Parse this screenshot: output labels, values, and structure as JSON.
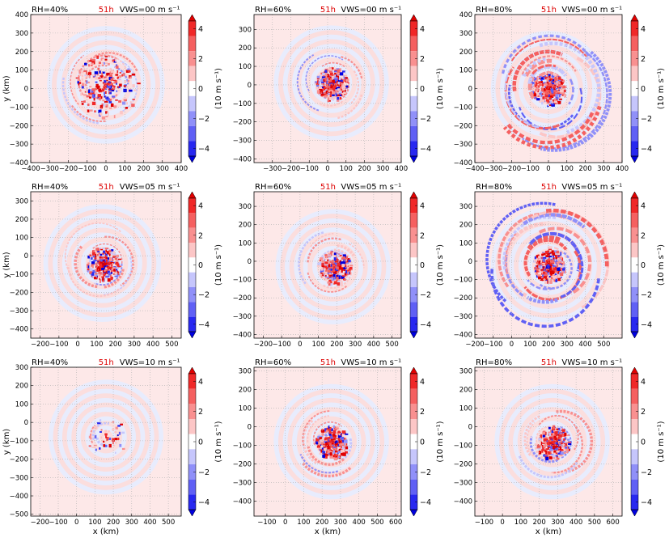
{
  "figure": {
    "colors": {
      "background_pink": "#fde8e8",
      "background_blue": "#e8ecfd",
      "red_strong": "#f01414",
      "red_mid": "#f56a6a",
      "red_light": "#f9a8a8",
      "blue_strong": "#1414f0",
      "blue_mid": "#6a6af5",
      "blue_light": "#a8a8f9",
      "grid": "#b0b0b0",
      "time_label": "#dd0000"
    },
    "colorbar": {
      "label": "(10 m s⁻¹)",
      "ticks": [
        "4",
        "2",
        "0",
        "−2",
        "−4"
      ],
      "levels": [
        4.5,
        3.5,
        2.5,
        1.5,
        0.5,
        -0.5,
        -1.5,
        -2.5,
        -3.5,
        -4.5
      ],
      "colors": [
        "#e00000",
        "#f02828",
        "#f56060",
        "#f99090",
        "#fcc6c6",
        "#ffffff",
        "#c6c6fc",
        "#9090f9",
        "#6060f5",
        "#2828f0",
        "#0000e0"
      ]
    }
  },
  "chart_data": [
    {
      "type": "heatmap",
      "title_left": "RH=40%",
      "title_time": "51h",
      "title_right": "VWS=00 m s⁻¹",
      "xlabel": "",
      "ylabel": "y (km)",
      "xlim": [
        -400,
        400
      ],
      "ylim": [
        -400,
        400
      ],
      "xticks": [
        "−400",
        "−300",
        "−200",
        "−100",
        "0",
        "100",
        "200",
        "300",
        "400"
      ],
      "xtick_values": [
        -400,
        -300,
        -200,
        -100,
        0,
        100,
        200,
        300,
        400
      ],
      "yticks": [
        "400",
        "300",
        "200",
        "100",
        "0",
        "−100",
        "−200",
        "−300",
        "−400"
      ],
      "ytick_values": [
        400,
        300,
        200,
        100,
        0,
        -100,
        -200,
        -300,
        -400
      ],
      "center": [
        0,
        20
      ],
      "pattern": "scattered",
      "strength": 0.9
    },
    {
      "type": "heatmap",
      "title_left": "RH=60%",
      "title_time": "51h",
      "title_right": "VWS=00 m s⁻¹",
      "xlabel": "",
      "ylabel": "",
      "xlim": [
        -400,
        400
      ],
      "ylim": [
        -420,
        380
      ],
      "xticks": [
        "−300",
        "−200",
        "−100",
        "0",
        "100",
        "200",
        "300",
        "400"
      ],
      "xtick_values": [
        -300,
        -200,
        -100,
        0,
        100,
        200,
        300,
        400
      ],
      "yticks": [
        "300",
        "200",
        "100",
        "0",
        "−100",
        "−200",
        "−300",
        "−400"
      ],
      "ytick_values": [
        300,
        200,
        100,
        0,
        -100,
        -200,
        -300,
        -400
      ],
      "center": [
        20,
        10
      ],
      "pattern": "spiral",
      "strength": 1.0
    },
    {
      "type": "heatmap",
      "title_left": "RH=80%",
      "title_time": "51h",
      "title_right": "VWS=00 m s⁻¹",
      "xlabel": "",
      "ylabel": "",
      "xlim": [
        -400,
        400
      ],
      "ylim": [
        -400,
        400
      ],
      "xticks": [
        "−400",
        "−300",
        "−200",
        "−100",
        "0",
        "100",
        "200",
        "300",
        "400"
      ],
      "xtick_values": [
        -400,
        -300,
        -200,
        -100,
        0,
        100,
        200,
        300,
        400
      ],
      "yticks": [
        "400",
        "300",
        "200",
        "100",
        "0",
        "−100",
        "−200",
        "−300",
        "−400"
      ],
      "ytick_values": [
        400,
        300,
        200,
        100,
        0,
        -100,
        -200,
        -300,
        -400
      ],
      "center": [
        0,
        0
      ],
      "pattern": "bands",
      "strength": 1.0
    },
    {
      "type": "heatmap",
      "title_left": "RH=40%",
      "title_time": "51h",
      "title_right": "VWS=05 m s⁻¹",
      "xlabel": "",
      "ylabel": "y (km)",
      "xlim": [
        -250,
        550
      ],
      "ylim": [
        -450,
        350
      ],
      "xticks": [
        "−200",
        "−100",
        "0",
        "100",
        "200",
        "300",
        "400",
        "500"
      ],
      "xtick_values": [
        -200,
        -100,
        0,
        100,
        200,
        300,
        400,
        500
      ],
      "yticks": [
        "300",
        "200",
        "100",
        "0",
        "−100",
        "−200",
        "−300",
        "−400"
      ],
      "ytick_values": [
        300,
        200,
        100,
        0,
        -100,
        -200,
        -300,
        -400
      ],
      "center": [
        130,
        -40
      ],
      "pattern": "spiral",
      "strength": 0.85
    },
    {
      "type": "heatmap",
      "title_left": "RH=60%",
      "title_time": "51h",
      "title_right": "VWS=05 m s⁻¹",
      "xlabel": "",
      "ylabel": "",
      "xlim": [
        -250,
        550
      ],
      "ylim": [
        -420,
        380
      ],
      "xticks": [
        "−200",
        "−100",
        "0",
        "100",
        "200",
        "300",
        "400",
        "500"
      ],
      "xtick_values": [
        -200,
        -100,
        0,
        100,
        200,
        300,
        400,
        500
      ],
      "yticks": [
        "300",
        "200",
        "100",
        "0",
        "−100",
        "−200",
        "−300",
        "−400"
      ],
      "ytick_values": [
        300,
        200,
        100,
        0,
        -100,
        -200,
        -300,
        -400
      ],
      "center": [
        180,
        -30
      ],
      "pattern": "spiral",
      "strength": 0.9
    },
    {
      "type": "heatmap",
      "title_left": "RH=80%",
      "title_time": "51h",
      "title_right": "VWS=05 m s⁻¹",
      "xlabel": "",
      "ylabel": "",
      "xlim": [
        -200,
        600
      ],
      "ylim": [
        -420,
        380
      ],
      "xticks": [
        "−200",
        "−100",
        "0",
        "100",
        "200",
        "300",
        "400",
        "500"
      ],
      "xtick_values": [
        -200,
        -100,
        0,
        100,
        200,
        300,
        400,
        500
      ],
      "yticks": [
        "300",
        "200",
        "100",
        "0",
        "−100",
        "−200",
        "−300",
        "−400"
      ],
      "ytick_values": [
        300,
        200,
        100,
        0,
        -100,
        -200,
        -300,
        -400
      ],
      "center": [
        200,
        -20
      ],
      "pattern": "bands",
      "strength": 1.0
    },
    {
      "type": "heatmap",
      "title_left": "RH=40%",
      "title_time": "51h",
      "title_right": "VWS=10 m s⁻¹",
      "xlabel": "x (km)",
      "ylabel": "y (km)",
      "xlim": [
        -250,
        570
      ],
      "ylim": [
        -510,
        300
      ],
      "xticks": [
        "−200",
        "−100",
        "0",
        "100",
        "200",
        "300",
        "400",
        "500"
      ],
      "xtick_values": [
        -200,
        -100,
        0,
        100,
        200,
        300,
        400,
        500
      ],
      "yticks": [
        "300",
        "200",
        "100",
        "0",
        "−100",
        "−200",
        "−300",
        "−400",
        "−500"
      ],
      "ytick_values": [
        300,
        200,
        100,
        0,
        -100,
        -200,
        -300,
        -400,
        -500
      ],
      "center": [
        160,
        -80
      ],
      "pattern": "sparse",
      "strength": 0.6
    },
    {
      "type": "heatmap",
      "title_left": "RH=60%",
      "title_time": "51h",
      "title_right": "VWS=10 m s⁻¹",
      "xlabel": "x (km)",
      "ylabel": "",
      "xlim": [
        -170,
        630
      ],
      "ylim": [
        -480,
        320
      ],
      "xticks": [
        "−100",
        "0",
        "100",
        "200",
        "300",
        "400",
        "500",
        "600"
      ],
      "xtick_values": [
        -100,
        0,
        100,
        200,
        300,
        400,
        500,
        600
      ],
      "yticks": [
        "300",
        "200",
        "100",
        "0",
        "−100",
        "−200",
        "−300",
        "−400"
      ],
      "ytick_values": [
        300,
        200,
        100,
        0,
        -100,
        -200,
        -300,
        -400
      ],
      "center": [
        250,
        -80
      ],
      "pattern": "spiral",
      "strength": 0.9
    },
    {
      "type": "heatmap",
      "title_left": "RH=80%",
      "title_time": "51h",
      "title_right": "VWS=10 m s⁻¹",
      "xlabel": "x (km)",
      "ylabel": "",
      "xlim": [
        -150,
        650
      ],
      "ylim": [
        -480,
        320
      ],
      "xticks": [
        "−100",
        "0",
        "100",
        "200",
        "300",
        "400",
        "500",
        "600"
      ],
      "xtick_values": [
        -100,
        0,
        100,
        200,
        300,
        400,
        500,
        600
      ],
      "yticks": [
        "300",
        "200",
        "100",
        "0",
        "−100",
        "−200",
        "−300",
        "−400"
      ],
      "ytick_values": [
        300,
        200,
        100,
        0,
        -100,
        -200,
        -300,
        -400
      ],
      "center": [
        270,
        -80
      ],
      "pattern": "spiral",
      "strength": 1.0
    }
  ]
}
